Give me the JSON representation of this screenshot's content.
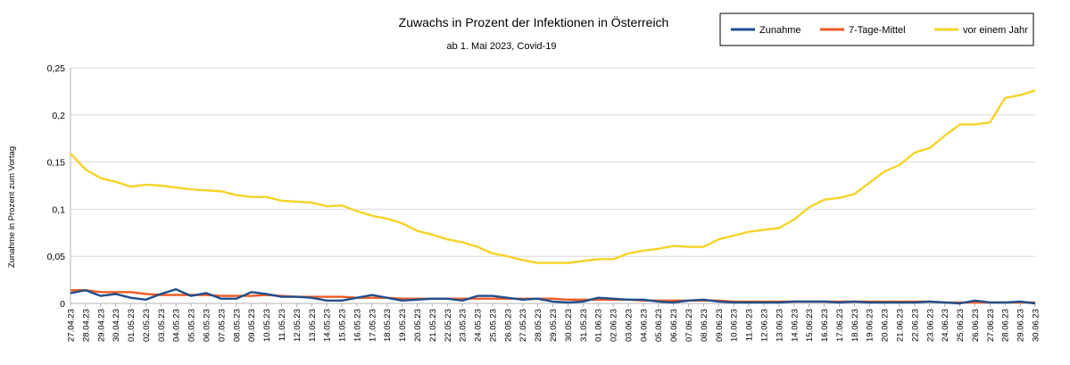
{
  "chart_data": {
    "type": "line",
    "title": "Zuwachs in Prozent der Infektionen in Österreich",
    "subtitle": "ab 1. Mai 2023, Covid-19",
    "ylabel": "Zunahme in Prozent zum Vortag",
    "xlabel": "",
    "ylim": [
      0,
      0.25
    ],
    "yticks": [
      0,
      0.05,
      0.1,
      0.15,
      0.2,
      0.25
    ],
    "ytick_labels": [
      "0",
      "0,05",
      "0,1",
      "0,15",
      "0,2",
      "0,25"
    ],
    "grid": true,
    "legend_position": "top-right",
    "categories": [
      "27.04.23",
      "28.04.23",
      "29.04.23",
      "30.04.23",
      "01.05.23",
      "02.05.23",
      "03.05.23",
      "04.05.23",
      "05.05.23",
      "06.05.23",
      "07.05.23",
      "08.05.23",
      "09.05.23",
      "10.05.23",
      "11.05.23",
      "12.05.23",
      "13.05.23",
      "14.05.23",
      "15.05.23",
      "16.05.23",
      "17.05.23",
      "18.05.23",
      "19.05.23",
      "20.05.23",
      "21.05.23",
      "22.05.23",
      "23.05.23",
      "24.05.23",
      "25.05.23",
      "26.05.23",
      "27.05.23",
      "28.05.23",
      "29.05.23",
      "30.05.23",
      "31.05.23",
      "01.06.23",
      "02.06.23",
      "03.06.23",
      "04.06.23",
      "05.06.23",
      "06.06.23",
      "07.06.23",
      "08.06.23",
      "09.06.23",
      "10.06.23",
      "11.06.23",
      "12.06.23",
      "13.06.23",
      "14.06.23",
      "15.06.23",
      "16.06.23",
      "17.06.23",
      "18.06.23",
      "19.06.23",
      "20.06.23",
      "21.06.23",
      "22.06.23",
      "23.06.23",
      "24.06.23",
      "25.06.23",
      "26.06.23",
      "27.06.23",
      "28.06.23",
      "29.06.23",
      "30.06.23"
    ],
    "series": [
      {
        "name": "Zunahme",
        "color": "#1f4e8c",
        "values": [
          0.011,
          0.014,
          0.008,
          0.01,
          0.006,
          0.004,
          0.01,
          0.015,
          0.008,
          0.011,
          0.005,
          0.005,
          0.012,
          0.01,
          0.007,
          0.007,
          0.006,
          0.003,
          0.003,
          0.006,
          0.009,
          0.006,
          0.003,
          0.004,
          0.005,
          0.005,
          0.003,
          0.008,
          0.008,
          0.006,
          0.004,
          0.005,
          0.002,
          0.001,
          0.002,
          0.006,
          0.005,
          0.004,
          0.004,
          0.002,
          0.001,
          0.003,
          0.004,
          0.002,
          0.001,
          0.001,
          0.001,
          0.001,
          0.002,
          0.002,
          0.002,
          0.001,
          0.002,
          0.001,
          0.001,
          0.001,
          0.001,
          0.002,
          0.001,
          0.0,
          0.003,
          0.001,
          0.001,
          0.002,
          0.0
        ]
      },
      {
        "name": "7-Tage-Mittel",
        "color": "#ee5a24",
        "values": [
          0.014,
          0.014,
          0.012,
          0.012,
          0.012,
          0.01,
          0.009,
          0.009,
          0.009,
          0.009,
          0.008,
          0.008,
          0.008,
          0.009,
          0.008,
          0.007,
          0.007,
          0.007,
          0.007,
          0.006,
          0.006,
          0.006,
          0.005,
          0.005,
          0.005,
          0.005,
          0.005,
          0.005,
          0.005,
          0.005,
          0.005,
          0.005,
          0.005,
          0.004,
          0.004,
          0.004,
          0.004,
          0.004,
          0.003,
          0.003,
          0.003,
          0.003,
          0.003,
          0.003,
          0.002,
          0.002,
          0.002,
          0.002,
          0.002,
          0.002,
          0.002,
          0.002,
          0.002,
          0.002,
          0.002,
          0.002,
          0.002,
          0.002,
          0.001,
          0.001,
          0.001,
          0.001,
          0.001,
          0.001,
          0.001
        ]
      },
      {
        "name": "vor einem Jahr",
        "color": "#f5d327",
        "values": [
          0.159,
          0.142,
          0.133,
          0.129,
          0.124,
          0.126,
          0.125,
          0.123,
          0.121,
          0.12,
          0.119,
          0.115,
          0.113,
          0.113,
          0.109,
          0.108,
          0.107,
          0.103,
          0.104,
          0.098,
          0.093,
          0.09,
          0.085,
          0.077,
          0.073,
          0.068,
          0.065,
          0.06,
          0.053,
          0.05,
          0.046,
          0.043,
          0.043,
          0.043,
          0.045,
          0.047,
          0.047,
          0.053,
          0.056,
          0.058,
          0.061,
          0.06,
          0.06,
          0.068,
          0.072,
          0.076,
          0.078,
          0.08,
          0.089,
          0.102,
          0.11,
          0.112,
          0.116,
          0.128,
          0.14,
          0.147,
          0.16,
          0.165,
          0.178,
          0.19,
          0.19,
          0.192,
          0.218,
          0.221,
          0.226
        ]
      }
    ]
  }
}
